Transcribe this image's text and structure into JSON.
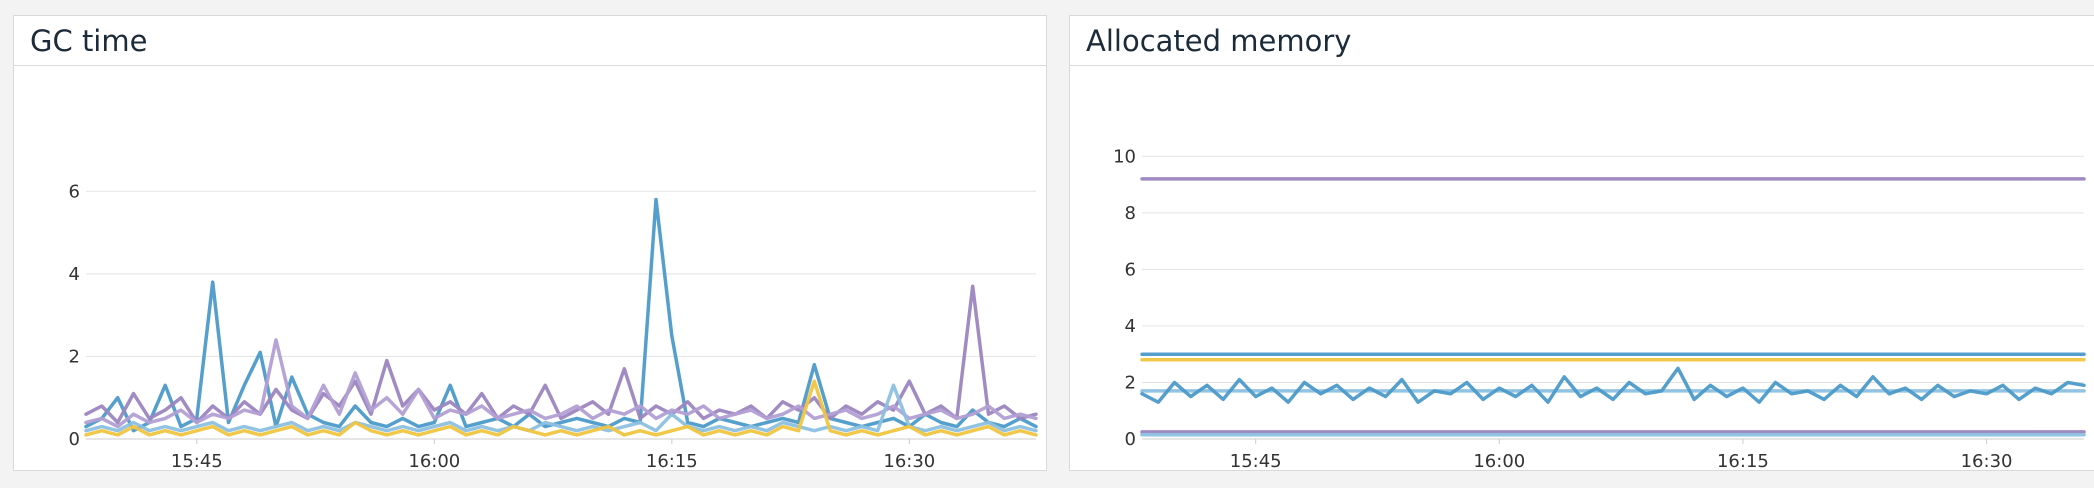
{
  "chart_data": [
    {
      "id": "gc",
      "type": "line",
      "title": "GC time",
      "xlabel": "",
      "ylabel": "",
      "grid": true,
      "legend": "none",
      "xlim": [
        "15:38",
        "16:38"
      ],
      "x_ticks": [
        "15:45",
        "16:00",
        "16:15",
        "16:30"
      ],
      "ylim": [
        0,
        7
      ],
      "y_ticks": [
        0,
        2,
        4,
        6
      ],
      "series": [
        {
          "color": "#4c9ac9",
          "x": [
            "15:38",
            "15:39",
            "15:40",
            "15:41",
            "15:42",
            "15:43",
            "15:44",
            "15:45",
            "15:46",
            "15:47",
            "15:48",
            "15:49",
            "15:50",
            "15:51",
            "15:52",
            "15:53",
            "15:54",
            "15:55",
            "15:56",
            "15:57",
            "15:58",
            "15:59",
            "16:00",
            "16:01",
            "16:02",
            "16:03",
            "16:04",
            "16:05",
            "16:06",
            "16:07",
            "16:08",
            "16:09",
            "16:10",
            "16:11",
            "16:12",
            "16:13",
            "16:14",
            "16:15",
            "16:16",
            "16:17",
            "16:18",
            "16:19",
            "16:20",
            "16:21",
            "16:22",
            "16:23",
            "16:24",
            "16:25",
            "16:26",
            "16:27",
            "16:28",
            "16:29",
            "16:30",
            "16:31",
            "16:32",
            "16:33",
            "16:34",
            "16:35",
            "16:36",
            "16:37",
            "16:38"
          ],
          "y": [
            0.3,
            0.5,
            1.0,
            0.2,
            0.4,
            1.3,
            0.3,
            0.5,
            3.8,
            0.4,
            1.3,
            2.1,
            0.3,
            1.5,
            0.6,
            0.4,
            0.3,
            0.8,
            0.4,
            0.3,
            0.5,
            0.3,
            0.4,
            1.3,
            0.3,
            0.4,
            0.5,
            0.3,
            0.6,
            0.3,
            0.4,
            0.5,
            0.4,
            0.3,
            0.5,
            0.4,
            5.8,
            2.5,
            0.4,
            0.3,
            0.5,
            0.4,
            0.3,
            0.4,
            0.5,
            0.4,
            1.8,
            0.5,
            0.4,
            0.3,
            0.4,
            0.5,
            0.3,
            0.6,
            0.4,
            0.3,
            0.7,
            0.4,
            0.3,
            0.5,
            0.3
          ]
        },
        {
          "color": "#9c85c0",
          "x": [
            "15:38",
            "15:39",
            "15:40",
            "15:41",
            "15:42",
            "15:43",
            "15:44",
            "15:45",
            "15:46",
            "15:47",
            "15:48",
            "15:49",
            "15:50",
            "15:51",
            "15:52",
            "15:53",
            "15:54",
            "15:55",
            "15:56",
            "15:57",
            "15:58",
            "15:59",
            "16:00",
            "16:01",
            "16:02",
            "16:03",
            "16:04",
            "16:05",
            "16:06",
            "16:07",
            "16:08",
            "16:09",
            "16:10",
            "16:11",
            "16:12",
            "16:13",
            "16:14",
            "16:15",
            "16:16",
            "16:17",
            "16:18",
            "16:19",
            "16:20",
            "16:21",
            "16:22",
            "16:23",
            "16:24",
            "16:25",
            "16:26",
            "16:27",
            "16:28",
            "16:29",
            "16:30",
            "16:31",
            "16:32",
            "16:33",
            "16:34",
            "16:35",
            "16:36",
            "16:37",
            "16:38"
          ],
          "y": [
            0.6,
            0.8,
            0.4,
            1.1,
            0.5,
            0.7,
            1.0,
            0.4,
            0.8,
            0.5,
            0.9,
            0.6,
            1.2,
            0.7,
            0.5,
            1.1,
            0.8,
            1.4,
            0.6,
            1.9,
            0.8,
            1.2,
            0.7,
            0.9,
            0.6,
            1.1,
            0.5,
            0.8,
            0.6,
            1.3,
            0.5,
            0.7,
            0.9,
            0.6,
            1.7,
            0.5,
            0.8,
            0.6,
            0.9,
            0.5,
            0.7,
            0.6,
            0.8,
            0.5,
            0.9,
            0.7,
            1.0,
            0.5,
            0.8,
            0.6,
            0.9,
            0.7,
            1.4,
            0.6,
            0.8,
            0.5,
            3.7,
            0.6,
            0.8,
            0.5,
            0.6
          ]
        },
        {
          "color": "#b29fd4",
          "x": [
            "15:38",
            "15:39",
            "15:40",
            "15:41",
            "15:42",
            "15:43",
            "15:44",
            "15:45",
            "15:46",
            "15:47",
            "15:48",
            "15:49",
            "15:50",
            "15:51",
            "15:52",
            "15:53",
            "15:54",
            "15:55",
            "15:56",
            "15:57",
            "15:58",
            "15:59",
            "16:00",
            "16:01",
            "16:02",
            "16:03",
            "16:04",
            "16:05",
            "16:06",
            "16:07",
            "16:08",
            "16:09",
            "16:10",
            "16:11",
            "16:12",
            "16:13",
            "16:14",
            "16:15",
            "16:16",
            "16:17",
            "16:18",
            "16:19",
            "16:20",
            "16:21",
            "16:22",
            "16:23",
            "16:24",
            "16:25",
            "16:26",
            "16:27",
            "16:28",
            "16:29",
            "16:30",
            "16:31",
            "16:32",
            "16:33",
            "16:34",
            "16:35",
            "16:36",
            "16:37",
            "16:38"
          ],
          "y": [
            0.4,
            0.5,
            0.3,
            0.6,
            0.4,
            0.5,
            0.7,
            0.4,
            0.6,
            0.5,
            0.7,
            0.6,
            2.4,
            0.8,
            0.5,
            1.3,
            0.6,
            1.6,
            0.7,
            1.0,
            0.6,
            1.2,
            0.5,
            0.7,
            0.6,
            0.8,
            0.5,
            0.6,
            0.7,
            0.5,
            0.6,
            0.8,
            0.5,
            0.7,
            0.6,
            0.8,
            0.5,
            0.7,
            0.6,
            0.8,
            0.5,
            0.6,
            0.7,
            0.5,
            0.6,
            0.8,
            0.5,
            0.6,
            0.7,
            0.5,
            0.6,
            0.8,
            0.5,
            0.6,
            0.7,
            0.5,
            0.6,
            0.8,
            0.5,
            0.6,
            0.5
          ]
        },
        {
          "color": "#8cc0e0",
          "x": [
            "15:38",
            "15:39",
            "15:40",
            "15:41",
            "15:42",
            "15:43",
            "15:44",
            "15:45",
            "15:46",
            "15:47",
            "15:48",
            "15:49",
            "15:50",
            "15:51",
            "15:52",
            "15:53",
            "15:54",
            "15:55",
            "15:56",
            "15:57",
            "15:58",
            "15:59",
            "16:00",
            "16:01",
            "16:02",
            "16:03",
            "16:04",
            "16:05",
            "16:06",
            "16:07",
            "16:08",
            "16:09",
            "16:10",
            "16:11",
            "16:12",
            "16:13",
            "16:14",
            "16:15",
            "16:16",
            "16:17",
            "16:18",
            "16:19",
            "16:20",
            "16:21",
            "16:22",
            "16:23",
            "16:24",
            "16:25",
            "16:26",
            "16:27",
            "16:28",
            "16:29",
            "16:30",
            "16:31",
            "16:32",
            "16:33",
            "16:34",
            "16:35",
            "16:36",
            "16:37",
            "16:38"
          ],
          "y": [
            0.2,
            0.3,
            0.2,
            0.4,
            0.2,
            0.3,
            0.2,
            0.3,
            0.4,
            0.2,
            0.3,
            0.2,
            0.3,
            0.4,
            0.2,
            0.3,
            0.2,
            0.4,
            0.3,
            0.2,
            0.3,
            0.2,
            0.3,
            0.4,
            0.2,
            0.3,
            0.2,
            0.3,
            0.2,
            0.4,
            0.3,
            0.2,
            0.3,
            0.2,
            0.3,
            0.4,
            0.2,
            0.6,
            0.3,
            0.2,
            0.3,
            0.2,
            0.3,
            0.2,
            0.4,
            0.3,
            0.2,
            0.3,
            0.2,
            0.3,
            0.2,
            1.3,
            0.3,
            0.2,
            0.3,
            0.2,
            0.3,
            0.4,
            0.2,
            0.3,
            0.2
          ]
        },
        {
          "color": "#f0c540",
          "x": [
            "15:38",
            "15:39",
            "15:40",
            "15:41",
            "15:42",
            "15:43",
            "15:44",
            "15:45",
            "15:46",
            "15:47",
            "15:48",
            "15:49",
            "15:50",
            "15:51",
            "15:52",
            "15:53",
            "15:54",
            "15:55",
            "15:56",
            "15:57",
            "15:58",
            "15:59",
            "16:00",
            "16:01",
            "16:02",
            "16:03",
            "16:04",
            "16:05",
            "16:06",
            "16:07",
            "16:08",
            "16:09",
            "16:10",
            "16:11",
            "16:12",
            "16:13",
            "16:14",
            "16:15",
            "16:16",
            "16:17",
            "16:18",
            "16:19",
            "16:20",
            "16:21",
            "16:22",
            "16:23",
            "16:24",
            "16:25",
            "16:26",
            "16:27",
            "16:28",
            "16:29",
            "16:30",
            "16:31",
            "16:32",
            "16:33",
            "16:34",
            "16:35",
            "16:36",
            "16:37",
            "16:38"
          ],
          "y": [
            0.1,
            0.2,
            0.1,
            0.3,
            0.1,
            0.2,
            0.1,
            0.2,
            0.3,
            0.1,
            0.2,
            0.1,
            0.2,
            0.3,
            0.1,
            0.2,
            0.1,
            0.4,
            0.2,
            0.1,
            0.2,
            0.1,
            0.2,
            0.3,
            0.1,
            0.2,
            0.1,
            0.3,
            0.2,
            0.1,
            0.2,
            0.1,
            0.2,
            0.3,
            0.1,
            0.2,
            0.1,
            0.2,
            0.3,
            0.1,
            0.2,
            0.1,
            0.2,
            0.1,
            0.3,
            0.2,
            1.4,
            0.2,
            0.1,
            0.2,
            0.1,
            0.2,
            0.3,
            0.1,
            0.2,
            0.1,
            0.2,
            0.3,
            0.1,
            0.2,
            0.1
          ]
        }
      ]
    },
    {
      "id": "mem",
      "type": "line",
      "title": "Allocated memory",
      "xlabel": "",
      "ylabel": "",
      "grid": true,
      "legend": "none",
      "xlim": [
        "15:38",
        "16:36"
      ],
      "x_ticks": [
        "15:45",
        "16:00",
        "16:15",
        "16:30"
      ],
      "ylim": [
        0,
        11
      ],
      "y_ticks": [
        0,
        2,
        4,
        6,
        8,
        10
      ],
      "series": [
        {
          "color": "#9c85c0",
          "x": [
            "15:38",
            "16:36"
          ],
          "y": [
            9.2,
            9.2
          ]
        },
        {
          "color": "#4c9ac9",
          "x": [
            "15:38",
            "16:36"
          ],
          "y": [
            3.0,
            3.0
          ]
        },
        {
          "color": "#f0c540",
          "x": [
            "15:38",
            "16:36"
          ],
          "y": [
            2.8,
            2.8
          ]
        },
        {
          "color": "#8cc0e0",
          "x": [
            "15:38",
            "16:36"
          ],
          "y": [
            1.7,
            1.7
          ]
        },
        {
          "color": "#9c85c0",
          "x": [
            "15:38",
            "16:36"
          ],
          "y": [
            0.25,
            0.25
          ]
        },
        {
          "color": "#8cc0e0",
          "x": [
            "15:38",
            "16:36"
          ],
          "y": [
            0.15,
            0.15
          ]
        },
        {
          "color": "#4c9ac9",
          "x": [
            "15:38",
            "15:39",
            "15:40",
            "15:41",
            "15:42",
            "15:43",
            "15:44",
            "15:45",
            "15:46",
            "15:47",
            "15:48",
            "15:49",
            "15:50",
            "15:51",
            "15:52",
            "15:53",
            "15:54",
            "15:55",
            "15:56",
            "15:57",
            "15:58",
            "15:59",
            "16:00",
            "16:01",
            "16:02",
            "16:03",
            "16:04",
            "16:05",
            "16:06",
            "16:07",
            "16:08",
            "16:09",
            "16:10",
            "16:11",
            "16:12",
            "16:13",
            "16:14",
            "16:15",
            "16:16",
            "16:17",
            "16:18",
            "16:19",
            "16:20",
            "16:21",
            "16:22",
            "16:23",
            "16:24",
            "16:25",
            "16:26",
            "16:27",
            "16:28",
            "16:29",
            "16:30",
            "16:31",
            "16:32",
            "16:33",
            "16:34",
            "16:35",
            "16:36"
          ],
          "y": [
            1.6,
            1.3,
            2.0,
            1.5,
            1.9,
            1.4,
            2.1,
            1.5,
            1.8,
            1.3,
            2.0,
            1.6,
            1.9,
            1.4,
            1.8,
            1.5,
            2.1,
            1.3,
            1.7,
            1.6,
            2.0,
            1.4,
            1.8,
            1.5,
            1.9,
            1.3,
            2.2,
            1.5,
            1.8,
            1.4,
            2.0,
            1.6,
            1.7,
            2.5,
            1.4,
            1.9,
            1.5,
            1.8,
            1.3,
            2.0,
            1.6,
            1.7,
            1.4,
            1.9,
            1.5,
            2.2,
            1.6,
            1.8,
            1.4,
            1.9,
            1.5,
            1.7,
            1.6,
            1.9,
            1.4,
            1.8,
            1.6,
            2.0,
            1.9
          ]
        }
      ]
    }
  ]
}
